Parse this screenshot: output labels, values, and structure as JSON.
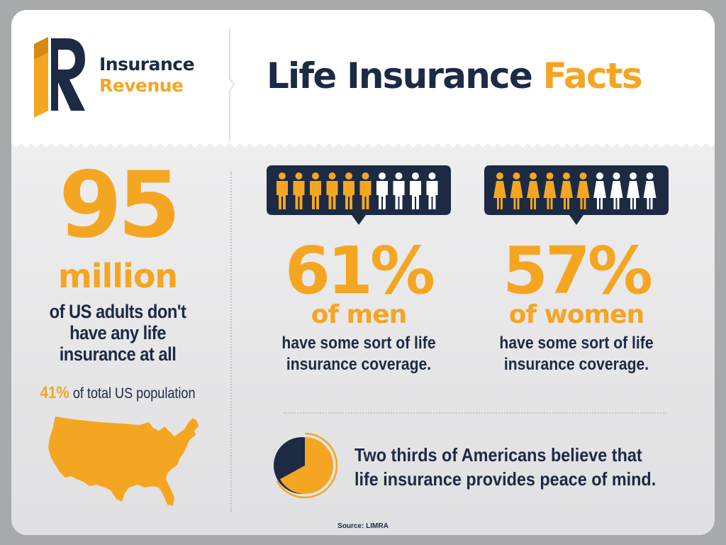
{
  "colors": {
    "navy": "#1c2a44",
    "orange": "#f4a623",
    "white": "#ffffff",
    "background": "#e6e6e8"
  },
  "header": {
    "logo_icon": "ir-logo-icon",
    "brand_line1": "Insurance",
    "brand_line2": "Revenue",
    "title_part1": "Life Insurance",
    "title_part2": "Facts"
  },
  "left_stat": {
    "number": "95",
    "unit": "million",
    "description": "of US adults don't have any life insurance at all",
    "population_pct": "41%",
    "population_text": "of total US population",
    "map_icon": "us-map-icon"
  },
  "men": {
    "icon": "man-figure-icon",
    "icon_total": 10,
    "icon_filled": 6,
    "percent": "61%",
    "label": "of men",
    "coverage": "have some sort of life insurance coverage."
  },
  "women": {
    "icon": "woman-figure-icon",
    "icon_total": 10,
    "icon_filled": 6,
    "percent": "57%",
    "label": "of women",
    "coverage": "have some sort of life insurance coverage."
  },
  "peace": {
    "icon": "pie-chart-icon",
    "fraction": 0.67,
    "line1": "Two thirds of Americans believe that",
    "line2": "life insurance provides peace of mind."
  },
  "source": "Source: LIMRA"
}
